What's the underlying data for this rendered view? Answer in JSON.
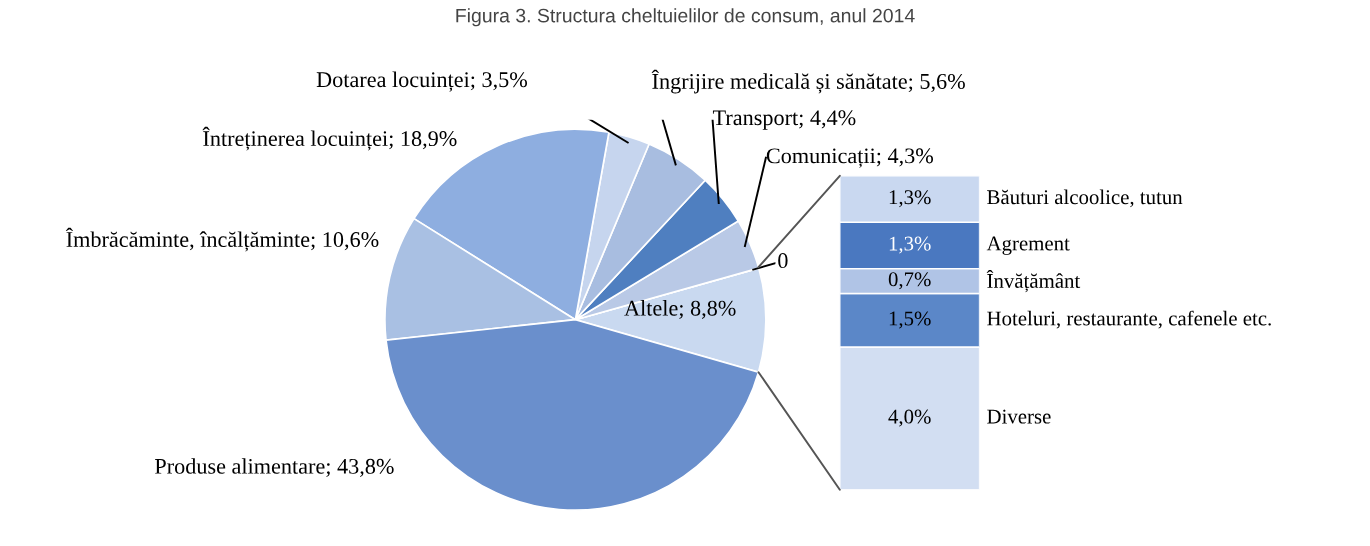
{
  "chart_data": [
    {
      "type": "pie",
      "title": "Figura 3. Structura cheltuielilor de consum, anul 2014",
      "categories": [
        "Altele",
        null,
        "Comunicații",
        "Transport",
        "Îngrijire medicală și sănătate",
        "Dotarea locuinței",
        "Întreținerea locuinței",
        "Îmbrăcăminte, încălțăminte",
        "Produse alimentare"
      ],
      "values": [
        8.8,
        0,
        4.3,
        4.4,
        5.6,
        3.5,
        18.9,
        10.6,
        43.8
      ],
      "value_labels": [
        "8,8%",
        "0",
        "4,3%",
        "4,4%",
        "5,6%",
        "3,5%",
        "18,9%",
        "10,6%",
        "43,8%"
      ],
      "colors": [
        "#c9d9f0",
        "#dde6f4",
        "#b9c9e6",
        "#4f7fc0",
        "#a8bde0",
        "#c6d5ee",
        "#8eaee0",
        "#a9c0e3",
        "#6a8fcc"
      ]
    },
    {
      "type": "bar",
      "stacked": true,
      "categories": [
        null
      ],
      "series": [
        {
          "name": "Diverse",
          "color": "#d2def2",
          "values": [
            4.0
          ],
          "value_labels": [
            "4,0%"
          ]
        },
        {
          "name": "Hoteluri, restaurante, cafenele etc.",
          "color": "#5b87c8",
          "values": [
            1.5
          ],
          "value_labels": [
            "1,5%"
          ]
        },
        {
          "name": "Învățământ",
          "color": "#b0c4e6",
          "values": [
            0.7
          ],
          "value_labels": [
            "0,7%"
          ]
        },
        {
          "name": "Agrement",
          "color": "#4a78c0",
          "values": [
            1.3
          ],
          "value_labels": [
            "1,3%"
          ]
        },
        {
          "name": "Băuturi alcoolice, tutun",
          "color": "#c9d8f0",
          "values": [
            1.3
          ],
          "value_labels": [
            "1,3%"
          ]
        }
      ]
    }
  ]
}
